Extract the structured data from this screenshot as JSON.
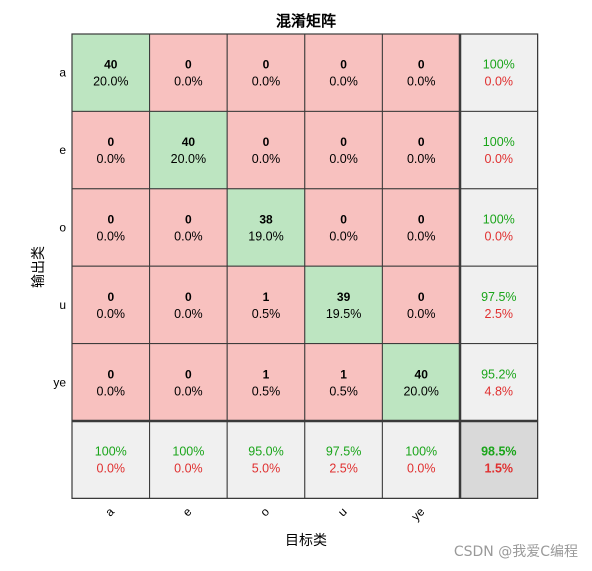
{
  "chart_data": {
    "type": "heatmap",
    "title": "混淆矩阵",
    "xlabel": "目标类",
    "ylabel": "输出类",
    "classes": [
      "a",
      "e",
      "o",
      "u",
      "ye"
    ],
    "matrix": [
      [
        40,
        0,
        0,
        0,
        0
      ],
      [
        0,
        40,
        0,
        0,
        0
      ],
      [
        0,
        0,
        38,
        0,
        0
      ],
      [
        0,
        0,
        1,
        39,
        0
      ],
      [
        0,
        0,
        1,
        1,
        40
      ]
    ],
    "matrix_percent": [
      [
        "20.0%",
        "0.0%",
        "0.0%",
        "0.0%",
        "0.0%"
      ],
      [
        "0.0%",
        "20.0%",
        "0.0%",
        "0.0%",
        "0.0%"
      ],
      [
        "0.0%",
        "0.0%",
        "19.0%",
        "0.0%",
        "0.0%"
      ],
      [
        "0.0%",
        "0.0%",
        "0.5%",
        "19.5%",
        "0.0%"
      ],
      [
        "0.0%",
        "0.0%",
        "0.5%",
        "0.5%",
        "20.0%"
      ]
    ],
    "row_summary": [
      {
        "correct": "100%",
        "error": "0.0%"
      },
      {
        "correct": "100%",
        "error": "0.0%"
      },
      {
        "correct": "100%",
        "error": "0.0%"
      },
      {
        "correct": "97.5%",
        "error": "2.5%"
      },
      {
        "correct": "95.2%",
        "error": "4.8%"
      }
    ],
    "column_summary": [
      {
        "correct": "100%",
        "error": "0.0%"
      },
      {
        "correct": "100%",
        "error": "0.0%"
      },
      {
        "correct": "95.0%",
        "error": "5.0%"
      },
      {
        "correct": "97.5%",
        "error": "2.5%"
      },
      {
        "correct": "100%",
        "error": "0.0%"
      }
    ],
    "overall": {
      "correct": "98.5%",
      "error": "1.5%"
    }
  },
  "colors": {
    "diagonal": "#bde5c1",
    "off_diagonal": "#f8c1bf",
    "summary": "#f0f0f0",
    "overall": "#d9d9d9",
    "correct_text": "#1aa51a",
    "error_text": "#e03030"
  },
  "watermark": "CSDN @我爱C编程"
}
